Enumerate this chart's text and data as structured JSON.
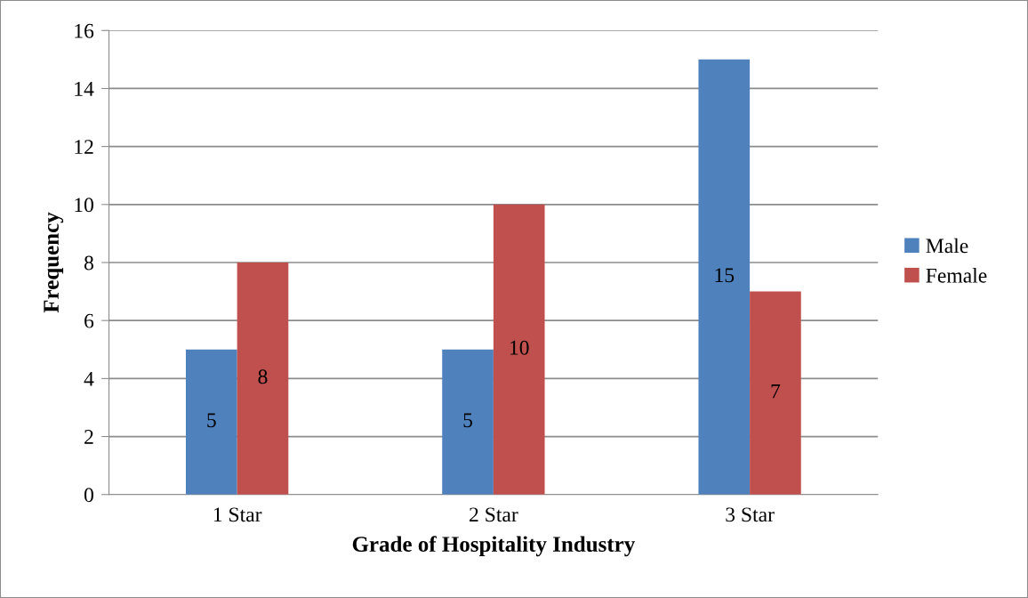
{
  "chart_data": {
    "type": "bar",
    "xlabel": "Grade of Hospitality Industry",
    "ylabel": "Frequency",
    "categories": [
      "1 Star",
      "2 Star",
      "3 Star"
    ],
    "series": [
      {
        "name": "Male",
        "color": "#4f81bd",
        "values": [
          5,
          5,
          15
        ]
      },
      {
        "name": "Female",
        "color": "#c0504d",
        "values": [
          8,
          10,
          7
        ]
      }
    ],
    "ylim": [
      0,
      16
    ],
    "yticks": [
      0,
      2,
      4,
      6,
      8,
      10,
      12,
      14,
      16
    ],
    "grid": "y",
    "legend": "right",
    "data_labels": true
  }
}
